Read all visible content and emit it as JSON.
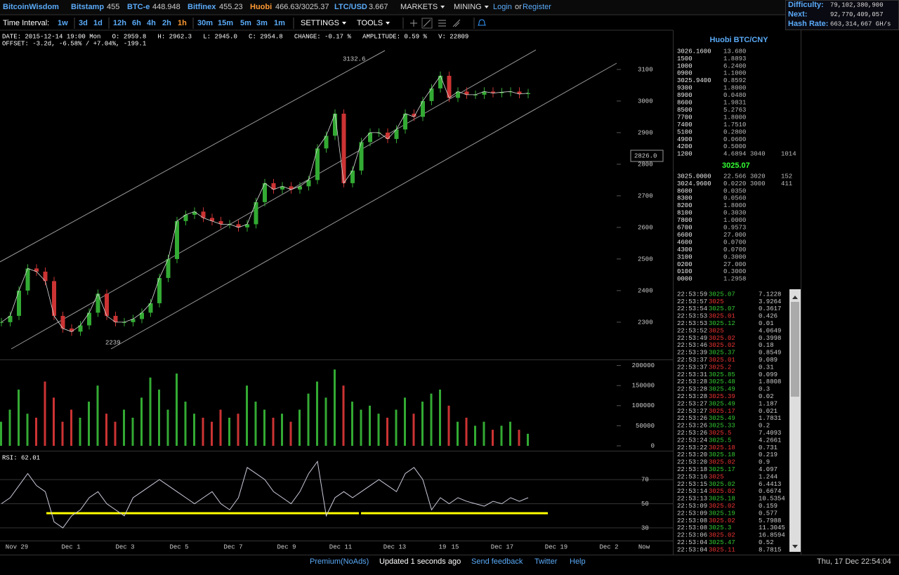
{
  "header": {
    "brand": "BitcoinWisdom",
    "tickers": [
      {
        "name": "Bitstamp",
        "price": "455"
      },
      {
        "name": "BTC-e",
        "price": "448.948"
      },
      {
        "name": "Bitfinex",
        "price": "455.23"
      },
      {
        "name": "Huobi",
        "price": "466.63/3025.37"
      },
      {
        "name": "LTC/USD",
        "price": "3.667"
      }
    ],
    "menus": [
      "MARKETS",
      "MINING"
    ],
    "login": "Login",
    "or": "or",
    "register": "Register"
  },
  "network": [
    {
      "label": "Difficulty:",
      "value": "79,102,380,900"
    },
    {
      "label": "Next:",
      "value": "92,770,409,057"
    },
    {
      "label": "Hash Rate:",
      "value": "663,314,667 GH/s"
    }
  ],
  "toolbar": {
    "label": "Time Interval:",
    "intervals": [
      "1w",
      "3d",
      "1d",
      "12h",
      "6h",
      "4h",
      "2h",
      "1h",
      "30m",
      "15m",
      "5m",
      "3m",
      "1m"
    ],
    "active": "1h",
    "menus": [
      "SETTINGS",
      "TOOLS"
    ]
  },
  "info": {
    "line1": "DATE: 2015-12-14 19:00 Mon   O: 2959.8   H: 2962.3   L: 2945.0   C: 2954.8   CHANGE: -0.17 %   AMPLITUDE: 0.59 %   V: 22809",
    "line2": "OFFSET: -3.2d, -6.58% / +7.04%, -199.1"
  },
  "chart": {
    "x_labels": [
      "Nov 29",
      "Dec 1",
      "Dec 3",
      "Dec 5",
      "Dec 7",
      "Dec 9",
      "Dec 11",
      "Dec 13",
      "19",
      "15",
      "Dec 17",
      "Dec 19",
      "Dec 2",
      "Now"
    ],
    "price": {
      "ylim": [
        2182,
        3222
      ],
      "yticks": [
        2300,
        2400,
        2500,
        2600,
        2700,
        2800,
        2900,
        3000,
        3100
      ],
      "annotations": [
        "3132.6",
        "2239"
      ],
      "cursor_price": "2826.0",
      "values": [
        2300,
        2320,
        2400,
        2470,
        2460,
        2430,
        2320,
        2280,
        2270,
        2290,
        2330,
        2390,
        2320,
        2300,
        2300,
        2310,
        2330,
        2360,
        2440,
        2500,
        2620,
        2640,
        2650,
        2630,
        2620,
        2610,
        2610,
        2600,
        2610,
        2680,
        2740,
        2720,
        2730,
        2720,
        2730,
        2750,
        2850,
        2890,
        2960,
        2740,
        2780,
        2870,
        2900,
        2900,
        2880,
        2910,
        2960,
        2950,
        3000,
        3040,
        3080,
        3010,
        3030,
        3020,
        3020,
        3030,
        3025,
        3028,
        3030,
        3022,
        3025
      ]
    },
    "volume": {
      "ylim": [
        0,
        208000
      ],
      "yticks": [
        0,
        50000,
        100000,
        150000,
        200000
      ],
      "values": [
        60000,
        90000,
        140000,
        80000,
        70000,
        160000,
        120000,
        60000,
        90000,
        70000,
        110000,
        150000,
        80000,
        60000,
        90000,
        70000,
        120000,
        170000,
        140000,
        90000,
        180000,
        110000,
        80000,
        70000,
        60000,
        90000,
        70000,
        80000,
        150000,
        110000,
        90000,
        70000,
        80000,
        60000,
        90000,
        130000,
        160000,
        120000,
        190000,
        150000,
        110000,
        90000,
        100000,
        80000,
        70000,
        90000,
        120000,
        80000,
        110000,
        130000,
        140000,
        100000,
        60000,
        70000,
        50000,
        60000,
        40000,
        50000,
        60000,
        40000,
        30000
      ]
    },
    "rsi": {
      "label": "RSI: 62.01",
      "ylim": [
        19.5,
        92.7
      ],
      "yticks": [
        30,
        50,
        70
      ],
      "values": [
        50,
        55,
        65,
        75,
        65,
        60,
        35,
        30,
        40,
        45,
        55,
        60,
        50,
        45,
        40,
        55,
        60,
        65,
        70,
        65,
        60,
        55,
        50,
        55,
        60,
        50,
        45,
        55,
        80,
        75,
        70,
        60,
        55,
        50,
        60,
        75,
        85,
        40,
        55,
        60,
        55,
        60,
        65,
        70,
        65,
        60,
        75,
        80,
        70,
        45,
        55,
        50,
        55,
        52,
        50,
        48,
        52,
        50,
        55,
        52,
        55
      ]
    }
  },
  "orderbook": {
    "title": "Huobi BTC/CNY",
    "asks": [
      [
        "3026.1600",
        "13.680"
      ],
      [
        "1500",
        "1.8893"
      ],
      [
        "1000",
        "6.2400"
      ],
      [
        "0900",
        "1.1000"
      ],
      [
        "3025.9400",
        "0.8592"
      ],
      [
        "9300",
        "1.8000"
      ],
      [
        "8900",
        "0.0480"
      ],
      [
        "8600",
        "1.9831"
      ],
      [
        "8500",
        "5.2763"
      ],
      [
        "7700",
        "1.8000"
      ],
      [
        "7400",
        "1.7510"
      ],
      [
        "5100",
        "0.2800"
      ],
      [
        "4900",
        "0.0600"
      ],
      [
        "4200",
        "0.5000"
      ],
      [
        "1200",
        "4.6894",
        "3040",
        "1014"
      ]
    ],
    "last": "3025.07",
    "bids": [
      [
        "3025.0000",
        "22.566",
        "3020",
        "152"
      ],
      [
        "3024.9600",
        "0.0220",
        "3000",
        "411"
      ],
      [
        "8600",
        "0.0350"
      ],
      [
        "8300",
        "0.0560"
      ],
      [
        "8200",
        "1.8000"
      ],
      [
        "8100",
        "0.3030"
      ],
      [
        "7800",
        "1.0000"
      ],
      [
        "6700",
        "0.9573"
      ],
      [
        "6600",
        "27.000"
      ],
      [
        "4600",
        "0.0700"
      ],
      [
        "4300",
        "0.0700"
      ],
      [
        "3100",
        "0.3000"
      ],
      [
        "0200",
        "27.000"
      ],
      [
        "0100",
        "0.3000"
      ],
      [
        "0000",
        "1.2958"
      ]
    ]
  },
  "trades": [
    {
      "time": "22:53:59",
      "price": "3025.07",
      "amount": "7.1228",
      "color": "#3c3"
    },
    {
      "time": "22:53:57",
      "price": "3025",
      "amount": "3.9264",
      "color": "#e33"
    },
    {
      "time": "22:53:54",
      "price": "3025.07",
      "amount": "0.3617",
      "color": "#3c3"
    },
    {
      "time": "22:53:53",
      "price": "3025.01",
      "amount": "0.426",
      "color": "#e33"
    },
    {
      "time": "22:53:53",
      "price": "3025.12",
      "amount": "0.01",
      "color": "#3c3"
    },
    {
      "time": "22:53:52",
      "price": "3025",
      "amount": "4.0649",
      "color": "#e33"
    },
    {
      "time": "22:53:49",
      "price": "3025.02",
      "amount": "0.3998",
      "color": "#e33"
    },
    {
      "time": "22:53:46",
      "price": "3025.02",
      "amount": "0.18",
      "color": "#e33"
    },
    {
      "time": "22:53:39",
      "price": "3025.37",
      "amount": "0.8549",
      "color": "#3c3"
    },
    {
      "time": "22:53:37",
      "price": "3025.01",
      "amount": "9.089",
      "color": "#e33"
    },
    {
      "time": "22:53:37",
      "price": "3025.2",
      "amount": "0.31",
      "color": "#e33"
    },
    {
      "time": "22:53:31",
      "price": "3025.85",
      "amount": "0.099",
      "color": "#3c3"
    },
    {
      "time": "22:53:28",
      "price": "3025.48",
      "amount": "1.8808",
      "color": "#3c3"
    },
    {
      "time": "22:53:28",
      "price": "3025.49",
      "amount": "0.3",
      "color": "#3c3"
    },
    {
      "time": "22:53:28",
      "price": "3025.39",
      "amount": "0.02",
      "color": "#e33"
    },
    {
      "time": "22:53:27",
      "price": "3025.49",
      "amount": "1.187",
      "color": "#3c3"
    },
    {
      "time": "22:53:27",
      "price": "3025.17",
      "amount": "0.021",
      "color": "#e33"
    },
    {
      "time": "22:53:26",
      "price": "3025.49",
      "amount": "1.7831",
      "color": "#3c3"
    },
    {
      "time": "22:53:26",
      "price": "3025.33",
      "amount": "0.2",
      "color": "#3c3"
    },
    {
      "time": "22:53:26",
      "price": "3025.5",
      "amount": "7.4093",
      "color": "#e33"
    },
    {
      "time": "22:53:24",
      "price": "3025.5",
      "amount": "4.2661",
      "color": "#3c3"
    },
    {
      "time": "22:53:22",
      "price": "3025.18",
      "amount": "0.731",
      "color": "#e33"
    },
    {
      "time": "22:53:20",
      "price": "3025.18",
      "amount": "0.219",
      "color": "#3c3"
    },
    {
      "time": "22:53:20",
      "price": "3025.02",
      "amount": "0.9",
      "color": "#e33"
    },
    {
      "time": "22:53:18",
      "price": "3025.17",
      "amount": "4.097",
      "color": "#3c3"
    },
    {
      "time": "22:53:16",
      "price": "3025",
      "amount": "1.244",
      "color": "#e33"
    },
    {
      "time": "22:53:15",
      "price": "3025.02",
      "amount": "6.4413",
      "color": "#3c3"
    },
    {
      "time": "22:53:14",
      "price": "3025.02",
      "amount": "0.6674",
      "color": "#e33"
    },
    {
      "time": "22:53:13",
      "price": "3025.18",
      "amount": "10.5354",
      "color": "#3c3"
    },
    {
      "time": "22:53:09",
      "price": "3025.02",
      "amount": "0.159",
      "color": "#e33"
    },
    {
      "time": "22:53:09",
      "price": "3025.19",
      "amount": "0.577",
      "color": "#3c3"
    },
    {
      "time": "22:53:08",
      "price": "3025.02",
      "amount": "5.7988",
      "color": "#e33"
    },
    {
      "time": "22:53:08",
      "price": "3025.3",
      "amount": "11.3045",
      "color": "#3c3"
    },
    {
      "time": "22:53:06",
      "price": "3025.02",
      "amount": "16.8594",
      "color": "#e33"
    },
    {
      "time": "22:53:04",
      "price": "3025.47",
      "amount": "0.52",
      "color": "#3c3"
    },
    {
      "time": "22:53:04",
      "price": "3025.11",
      "amount": "8.7815",
      "color": "#e33"
    }
  ],
  "footer": {
    "premium": "Premium(NoAds)",
    "updated": "Updated 1 seconds ago",
    "feedback": "Send feedback",
    "twitter": "Twitter",
    "help": "Help",
    "clock": "Thu, 17 Dec 22:54:04"
  }
}
